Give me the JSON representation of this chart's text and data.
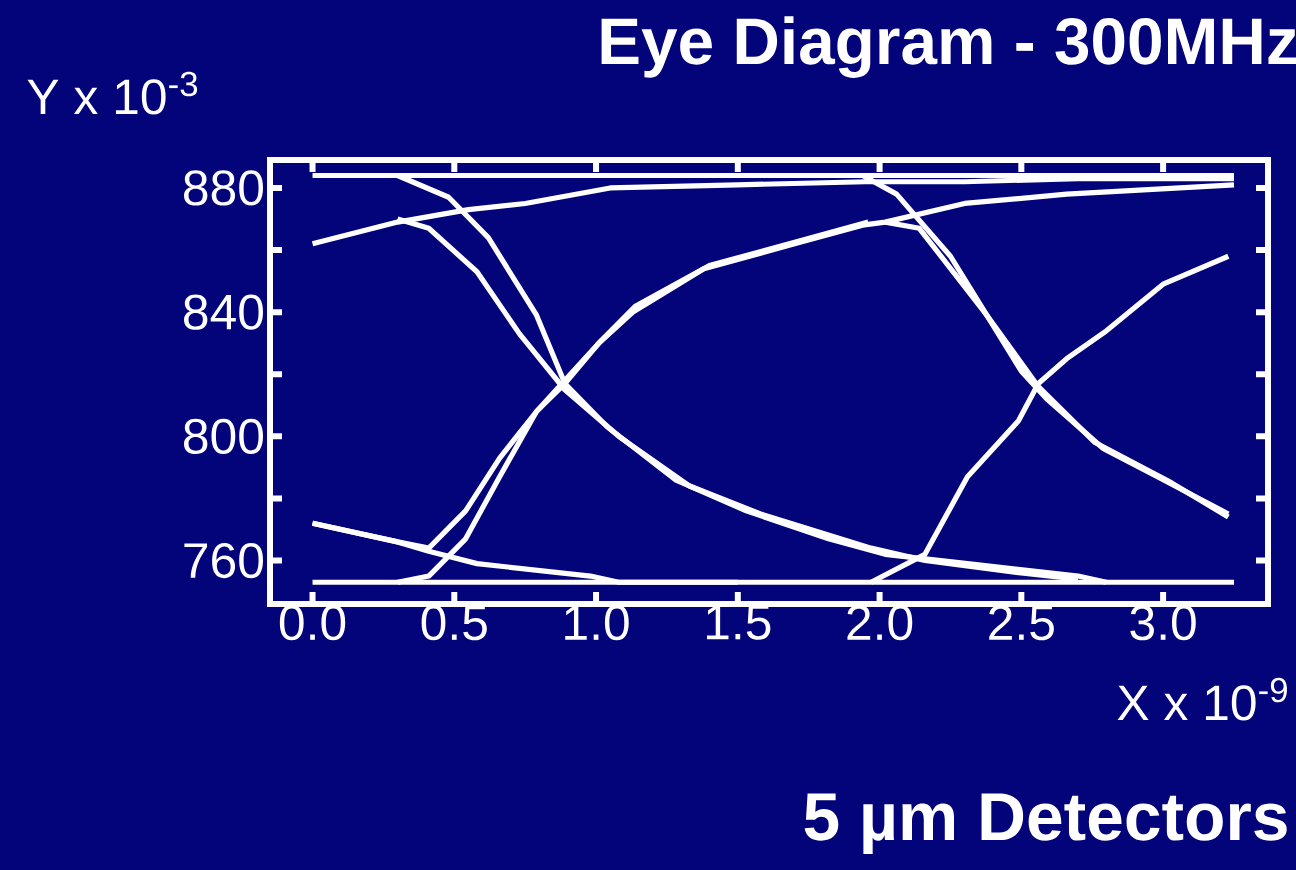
{
  "chart_data": {
    "type": "line",
    "title": "Eye Diagram - 300MHz",
    "xlabel": "X x 10$^{-9}$",
    "ylabel": "Y x 10$^{-3}$",
    "annotations": [
      "5 µm Detectors"
    ],
    "xlim": [
      -0.15,
      3.37
    ],
    "ylim": [
      746,
      889
    ],
    "xticks": [
      {
        "value": 0,
        "label": "0.0"
      },
      {
        "value": 0.5,
        "label": "0.5"
      },
      {
        "value": 1,
        "label": "1.0"
      },
      {
        "value": 1.5,
        "label": "1.5"
      },
      {
        "value": 2,
        "label": "2.0"
      },
      {
        "value": 2.5,
        "label": "2.5"
      },
      {
        "value": 3,
        "label": "3.0"
      }
    ],
    "yticks": [
      760,
      {
        "value": 780,
        "label": null
      },
      800,
      {
        "value": 820,
        "label": null
      },
      840,
      {
        "value": 860,
        "label": null
      },
      880
    ],
    "grid": false,
    "marker": "none",
    "line_style": "solid",
    "series": [
      {
        "color": "#ffffff",
        "x": [
          0,
          3.25
        ],
        "values": [
          884,
          884
        ]
      },
      {
        "color": "#ffffff",
        "x": [
          0,
          3.25
        ],
        "values": [
          753,
          753
        ]
      },
      {
        "color": "#ffffff",
        "x": [
          0,
          0.3,
          0.55,
          0.75,
          1.05,
          1.5,
          1.95,
          2.3,
          2.7,
          3.25
        ],
        "values": [
          862,
          869,
          873,
          875,
          880,
          881,
          882,
          882,
          883,
          883
        ]
      },
      {
        "color": "#ffffff",
        "x": [
          0.3,
          0.41,
          0.54,
          0.66,
          0.79,
          0.89,
          1.01,
          1.13,
          1.38,
          1.7,
          1.94,
          2.02,
          2.3,
          2.66,
          3.25
        ],
        "values": [
          753,
          755,
          767,
          787,
          808,
          817,
          830,
          840,
          854,
          862,
          868,
          869,
          875,
          878,
          881
        ]
      },
      {
        "color": "#ffffff",
        "x": [
          0,
          0.3,
          0.41,
          0.54,
          0.66,
          0.79,
          0.9,
          1.02,
          1.14,
          1.4,
          1.72,
          1.96
        ],
        "values": [
          772,
          766,
          764,
          776,
          793,
          808,
          819,
          831,
          842,
          855,
          863,
          869
        ]
      },
      {
        "color": "#ffffff",
        "x": [
          0,
          0.3,
          0.41,
          0.58,
          0.98,
          1.08,
          1.5
        ],
        "values": [
          772,
          766,
          763,
          759,
          755,
          753,
          753
        ]
      },
      {
        "color": "#ffffff",
        "x": [
          0.3,
          0.48,
          0.62,
          0.79,
          0.89,
          1.04,
          1.28,
          1.53,
          1.82,
          2.02,
          2.31,
          2.7,
          2.8
        ],
        "values": [
          884,
          877,
          864,
          839,
          817,
          803,
          786,
          776,
          767,
          762,
          759,
          755,
          753
        ]
      },
      {
        "color": "#ffffff",
        "x": [
          0.3,
          0.41,
          0.58,
          0.73,
          0.89,
          1.08,
          1.33,
          1.58,
          1.97,
          2.16,
          2.5,
          2.7
        ],
        "values": [
          870,
          867,
          853,
          833,
          815,
          800,
          784,
          775,
          764,
          760,
          756,
          754
        ]
      },
      {
        "color": "#ffffff",
        "x": [
          1.94,
          2.06,
          2.25,
          2.5,
          2.59,
          2.79,
          2.98,
          3.23
        ],
        "values": [
          884,
          878,
          858,
          821,
          812,
          796,
          787,
          775
        ]
      },
      {
        "color": "#ffffff",
        "x": [
          2.02,
          2.14,
          2.37,
          2.56,
          2.76,
          3.03,
          3.23
        ],
        "values": [
          869,
          867,
          840,
          816,
          798,
          785,
          774
        ]
      },
      {
        "color": "#ffffff",
        "x": [
          1.97,
          2.16,
          2.31,
          2.49,
          2.56,
          2.66,
          2.8,
          3.0,
          3.23
        ],
        "values": [
          753,
          762,
          787,
          805,
          817,
          825,
          834,
          849,
          858
        ]
      }
    ]
  }
}
